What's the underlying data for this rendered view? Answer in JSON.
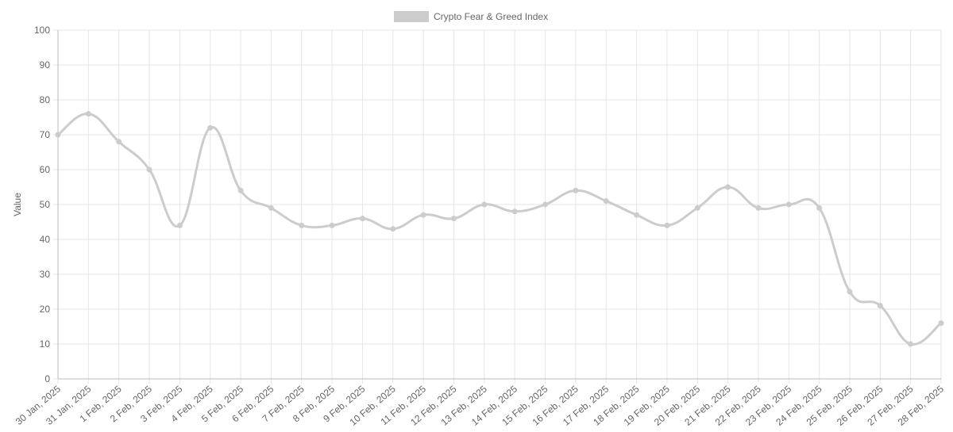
{
  "chart_data": {
    "type": "line",
    "categories": [
      "30 Jan, 2025",
      "31 Jan, 2025",
      "1 Feb, 2025",
      "2 Feb, 2025",
      "3 Feb, 2025",
      "4 Feb, 2025",
      "5 Feb, 2025",
      "6 Feb, 2025",
      "7 Feb, 2025",
      "8 Feb, 2025",
      "9 Feb, 2025",
      "10 Feb, 2025",
      "11 Feb, 2025",
      "12 Feb, 2025",
      "13 Feb, 2025",
      "14 Feb, 2025",
      "15 Feb, 2025",
      "16 Feb, 2025",
      "17 Feb, 2025",
      "18 Feb, 2025",
      "19 Feb, 2025",
      "20 Feb, 2025",
      "21 Feb, 2025",
      "22 Feb, 2025",
      "23 Feb, 2025",
      "24 Feb, 2025",
      "25 Feb, 2025",
      "26 Feb, 2025",
      "27 Feb, 2025",
      "28 Feb, 2025"
    ],
    "series": [
      {
        "name": "Crypto Fear & Greed Index",
        "color": "#cccccc",
        "values": [
          70,
          76,
          68,
          60,
          44,
          72,
          54,
          49,
          44,
          44,
          46,
          43,
          47,
          46,
          50,
          48,
          50,
          54,
          51,
          47,
          44,
          49,
          55,
          49,
          50,
          49,
          25,
          21,
          10,
          16
        ]
      }
    ],
    "y_label": "Value",
    "ylim": [
      0,
      100
    ],
    "yticks": [
      0,
      10,
      20,
      30,
      40,
      50,
      60,
      70,
      80,
      90,
      100
    ],
    "grid": true,
    "legend": "top"
  }
}
